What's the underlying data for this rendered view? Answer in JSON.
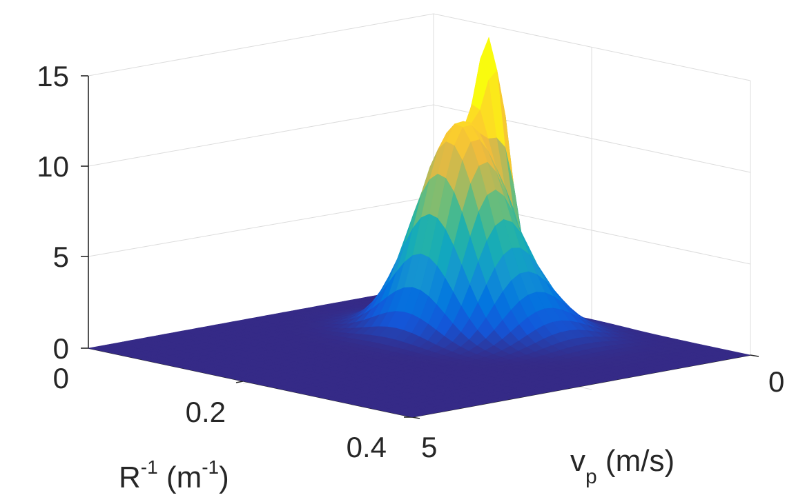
{
  "chart_data": {
    "type": "surface",
    "z_axis": {
      "ticks": [
        "0",
        "5",
        "10",
        "15"
      ],
      "range": [
        0,
        15
      ],
      "label": ""
    },
    "x_axis": {
      "ticks": [
        "0",
        "0.2",
        "0.4"
      ],
      "range": [
        0,
        0.4
      ],
      "label": "R",
      "label_sup": "-1",
      "label_mid": " (m",
      "label_sup2": "-1",
      "label_end": ")"
    },
    "y_axis": {
      "ticks": [
        "0",
        "5"
      ],
      "range": [
        0,
        5
      ],
      "label": "v",
      "label_sub": "p",
      "label_end": " (m/s)"
    },
    "grid": true,
    "colormap": "parula",
    "peaks": [
      {
        "x": 0.16,
        "y": 1.4,
        "z": 10.5
      },
      {
        "x": 0.15,
        "y": 0.85,
        "z": 12.5
      }
    ],
    "surface_shape": "two-peak hump centered near x=0.15 m^-1, y=1.0–1.6 m/s; near-zero elsewhere"
  }
}
